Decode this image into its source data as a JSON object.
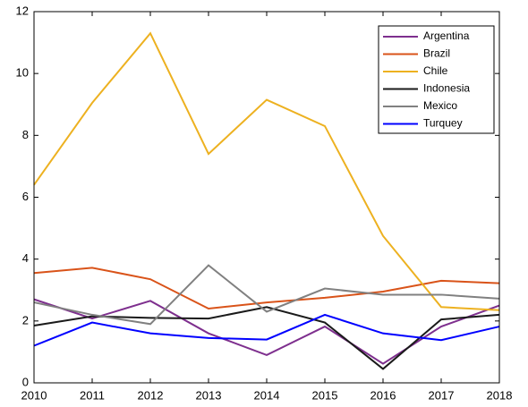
{
  "chart_data": {
    "type": "line",
    "x": [
      2010,
      2011,
      2012,
      2013,
      2014,
      2015,
      2016,
      2017,
      2018
    ],
    "series": [
      {
        "name": "Argentina",
        "color": "#7e2f8e",
        "values": [
          2.7,
          2.08,
          2.65,
          1.6,
          0.9,
          1.82,
          0.62,
          1.82,
          2.5
        ]
      },
      {
        "name": "Brazil",
        "color": "#d95319",
        "values": [
          3.55,
          3.72,
          3.35,
          2.4,
          2.6,
          2.75,
          2.95,
          3.3,
          3.22
        ]
      },
      {
        "name": "Chile",
        "color": "#edb120",
        "values": [
          6.4,
          9.05,
          11.3,
          7.4,
          9.15,
          8.3,
          4.75,
          2.45,
          2.35
        ]
      },
      {
        "name": "Indonesia",
        "color": "#1a1a1a",
        "values": [
          1.85,
          2.15,
          2.1,
          2.08,
          2.45,
          1.95,
          0.45,
          2.05,
          2.2
        ]
      },
      {
        "name": "Mexico",
        "color": "#808080",
        "values": [
          2.6,
          2.2,
          1.9,
          3.8,
          2.3,
          3.05,
          2.85,
          2.85,
          2.72
        ]
      },
      {
        "name": "Turquey",
        "color": "#0000ff",
        "values": [
          1.2,
          1.95,
          1.6,
          1.45,
          1.4,
          2.2,
          1.6,
          1.38,
          1.82
        ]
      }
    ],
    "xlim": [
      2010,
      2018
    ],
    "xticks": [
      2010,
      2011,
      2012,
      2013,
      2014,
      2015,
      2016,
      2017,
      2018
    ],
    "ylim": [
      0,
      12
    ],
    "yticks": [
      0,
      2,
      4,
      6,
      8,
      10,
      12
    ],
    "grid": false,
    "legend": "northeast"
  }
}
